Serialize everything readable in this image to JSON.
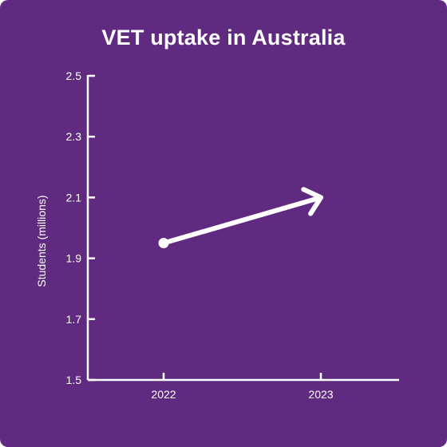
{
  "chart_data": {
    "type": "line",
    "title": "VET uptake in Australia",
    "xlabel": "",
    "ylabel": "Students (millions)",
    "categories": [
      "2022",
      "2023"
    ],
    "values": [
      1.95,
      2.1
    ],
    "ylim": [
      1.5,
      2.5
    ],
    "yticks": [
      "1.5",
      "1.7",
      "1.9",
      "2.1",
      "2.3",
      "2.5"
    ],
    "grid": false,
    "end_marker": "arrow",
    "colors": {
      "background": "#612a81",
      "line": "#ffffff",
      "text": "#ffffff"
    }
  }
}
